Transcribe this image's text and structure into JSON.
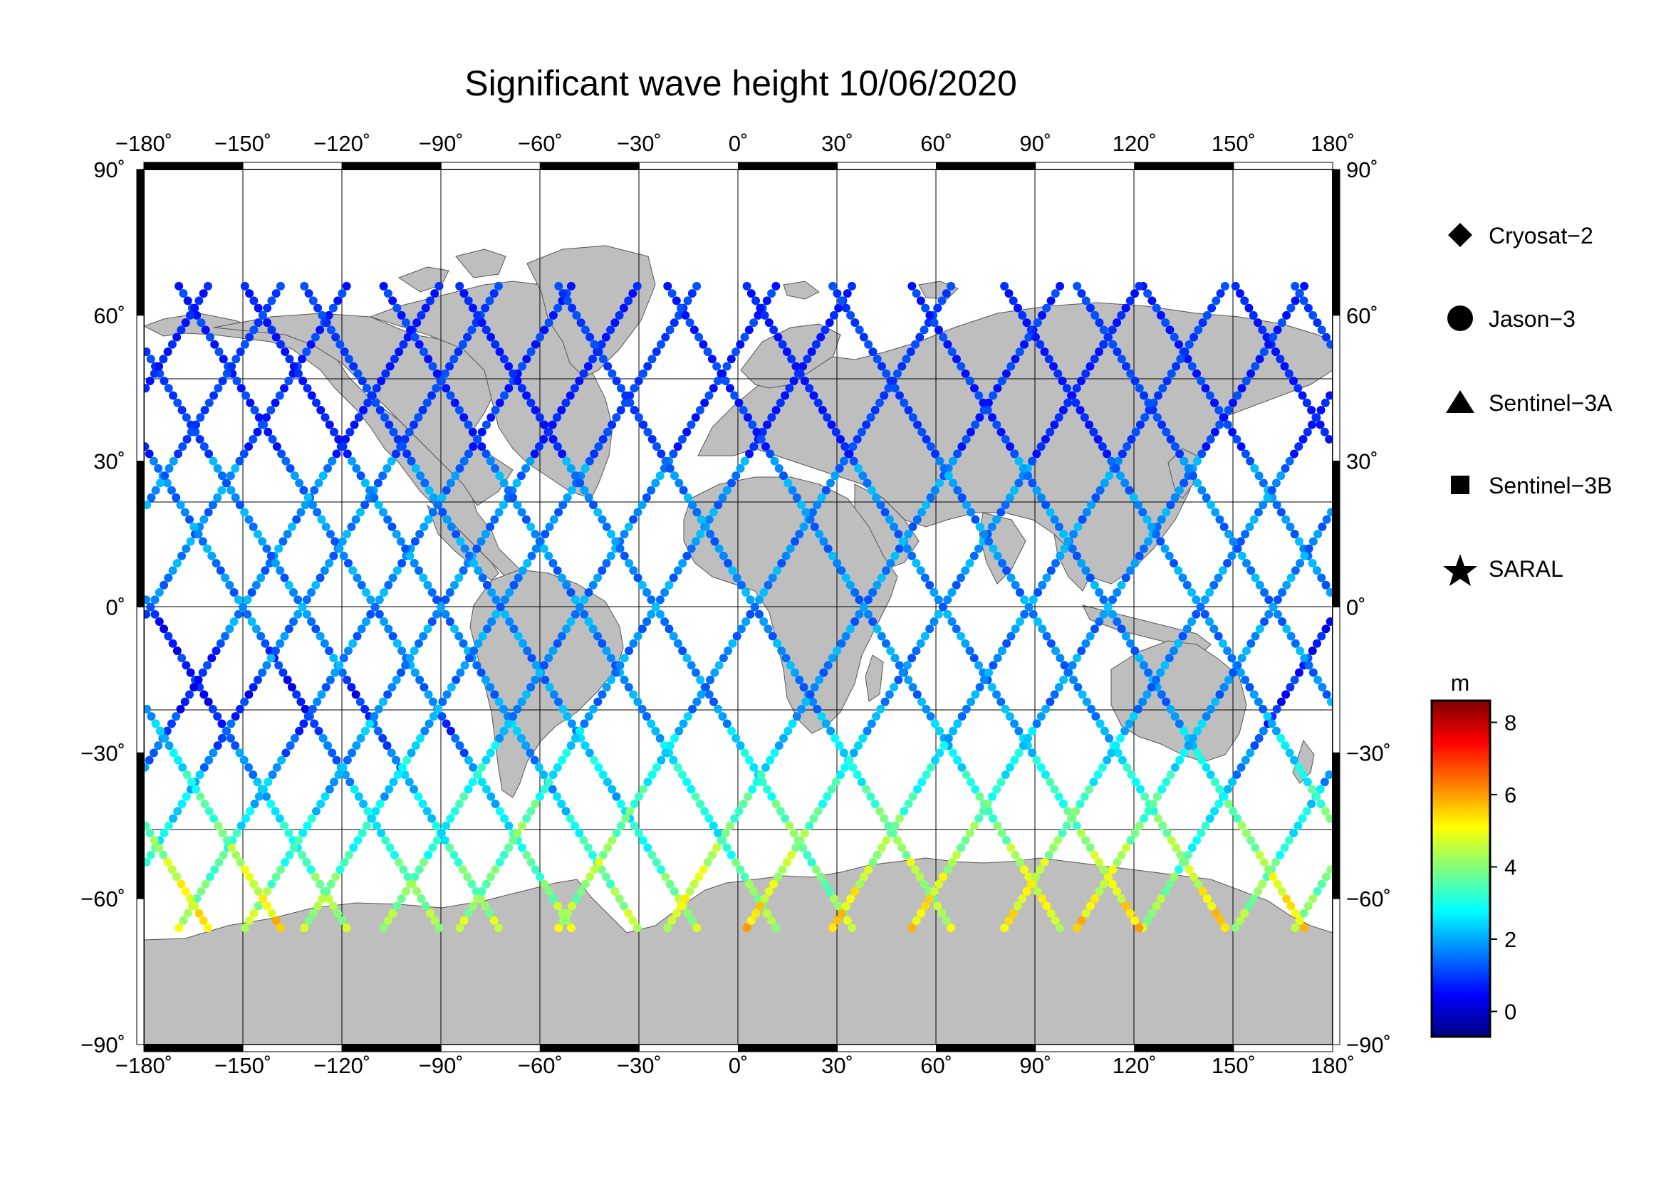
{
  "title": "Significant wave height 10/06/2020",
  "map": {
    "lon_range": [
      -180,
      180
    ],
    "lat_range": [
      -90,
      90
    ],
    "grid_step_lon": 30,
    "grid_step_lat": 30,
    "lon_ticks": [
      "−180˚",
      "−150˚",
      "−120˚",
      "−90˚",
      "−60˚",
      "−30˚",
      "0˚",
      "30˚",
      "60˚",
      "90˚",
      "120˚",
      "150˚",
      "180˚"
    ],
    "lat_ticks": [
      "90˚",
      "60˚",
      "30˚",
      "0˚",
      "−30˚",
      "−60˚",
      "−90˚"
    ],
    "land_color": "#bebebe",
    "ocean_color": "#ffffff"
  },
  "legend": {
    "items": [
      {
        "label": "Cryosat−2",
        "symbol": "diamond-icon"
      },
      {
        "label": "Jason−3",
        "symbol": "circle-icon"
      },
      {
        "label": "Sentinel−3A",
        "symbol": "triangle-icon"
      },
      {
        "label": "Sentinel−3B",
        "symbol": "square-icon"
      },
      {
        "label": "SARAL",
        "symbol": "star-icon"
      }
    ]
  },
  "colorbar": {
    "unit": "m",
    "range": [
      -0.7,
      8.6
    ],
    "ticks": [
      "8",
      "6",
      "4",
      "2",
      "0"
    ],
    "tick_values": [
      8,
      6,
      4,
      2,
      0
    ],
    "colors": [
      "#00007f",
      "#0000ff",
      "#007fff",
      "#00ffff",
      "#7fff7f",
      "#ffff00",
      "#ff7f00",
      "#ff0000",
      "#7f0000"
    ]
  }
}
